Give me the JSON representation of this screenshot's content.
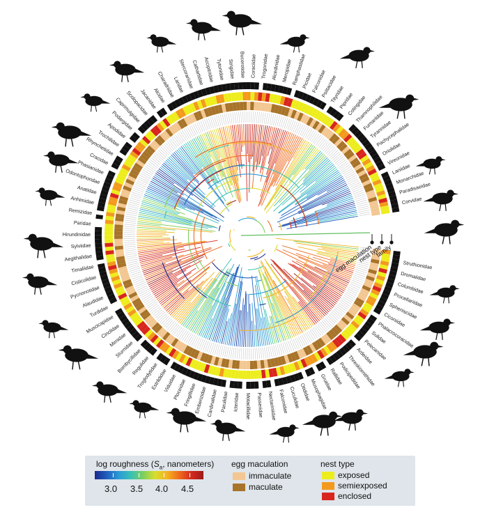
{
  "tree": {
    "families_top": [
      "Corvidae",
      "Paradisaeidae",
      "Monarchidae",
      "Laniidae",
      "Vireonidae",
      "Oriolidae",
      "Pachycephalidae",
      "Tyrannidae",
      "Furnariidae",
      "Thamnophilidae",
      "Cotingidae",
      "Pipridae",
      "Tityridae",
      "Psittacidae",
      "Falconidae",
      "Picidae",
      "Ramphastidae",
      "Meropidae",
      "Alcedinidae",
      "Trogonidae",
      "Coraciidae",
      "Bucerotidae",
      "Strigidae",
      "Tytonidae",
      "Accipitridae",
      "Cathartidae",
      "Stercorariidae",
      "Laridae",
      "Charadriidae",
      "Alcidae",
      "Jacanidae",
      "Scolopacidae",
      "Caprimulgidae",
      "Podargidae",
      "Apodidae",
      "Trochilidae",
      "Rhynchetidae",
      "Cracidae",
      "Phasianidae",
      "Odontophoridae",
      "Anatidae",
      "Anhimidae"
    ],
    "families_left": [
      "Remizidae",
      "Paridae",
      "Hirundinidae",
      "Sylviidae",
      "Aegithalidae",
      "Timaliidae",
      "Cisticolidae",
      "Pycnonotidae",
      "Alaudidae",
      "Turdidae",
      "Muscicapidae",
      "Cinclidae",
      "Mimidae",
      "Sturnidae",
      "Bombycillidae",
      "Regulidae",
      "Troglodytidae",
      "Estrildidae",
      "Viduidae",
      "Ploceidae",
      "Fringillidae"
    ],
    "families_bottom": [
      "Emberizidae",
      "Cardinalidae",
      "Parulidae",
      "Icteridae",
      "Motacillidae",
      "Passeridae",
      "Nectariniidae",
      "Falconidae",
      "Cuculidae",
      "Otididae",
      "Musophagidae",
      "Gruidae",
      "Rallidae",
      "Podicipedidae",
      "Threskiornithidae",
      "Ardeidae",
      "Pelecanidae",
      "Sulidae",
      "Phalacrocoracidae",
      "Ciconiidae",
      "Spheniscidae",
      "Procellariidae",
      "Columbidae",
      "Dromaiidae",
      "Struthionidae"
    ],
    "ring_labels": [
      "egg maculation",
      "nest type",
      "family"
    ]
  },
  "legend": {
    "roughness_title_pre": "log roughness (",
    "roughness_title_sym": "S",
    "roughness_title_sub": "a",
    "roughness_title_post": ", nanometers)",
    "roughness_ticks": [
      "3.0",
      "3.5",
      "4.0",
      "4.5"
    ],
    "colorscale": [
      "#1b2a8c",
      "#1f5fbf",
      "#2b9bd6",
      "#38c1b4",
      "#7ecf5c",
      "#d8de2e",
      "#f5b21f",
      "#ef6a1d",
      "#d42a1e",
      "#9e1a1a"
    ],
    "egg_title": "egg maculation",
    "egg_items": [
      {
        "label": "immaculate",
        "color": "#f3c792"
      },
      {
        "label": "maculate",
        "color": "#a8742a"
      }
    ],
    "nest_title": "nest type",
    "nest_items": [
      {
        "label": "exposed",
        "color": "#eded1e"
      },
      {
        "label": "semiexposed",
        "color": "#f39a1e"
      },
      {
        "label": "enclosed",
        "color": "#d8261e"
      }
    ]
  }
}
